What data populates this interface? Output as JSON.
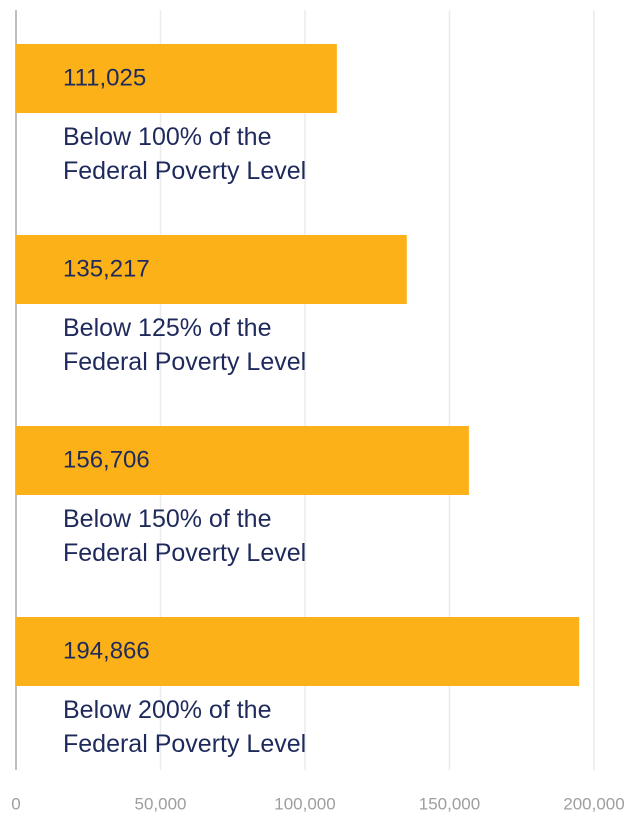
{
  "chart_data": {
    "type": "bar",
    "orientation": "horizontal",
    "categories": [
      "Below 100% of the Federal Poverty Level",
      "Below 125% of the Federal Poverty Level",
      "Below 150% of the Federal Poverty Level",
      "Below 200% of the Federal Poverty Level"
    ],
    "values": [
      111025,
      135217,
      156706,
      194866
    ],
    "value_labels": [
      "111,025",
      "135,217",
      "156,706",
      "194,866"
    ],
    "color": "#fbb117",
    "xlim": [
      0,
      200000
    ],
    "xticks": [
      0,
      {
        "value": 50000,
        "label": "50,000"
      },
      {
        "value": 100000,
        "label": "100,000"
      },
      {
        "value": 150000,
        "label": "150,000"
      },
      {
        "value": 200000,
        "label": "200,000"
      }
    ],
    "grid": true
  }
}
